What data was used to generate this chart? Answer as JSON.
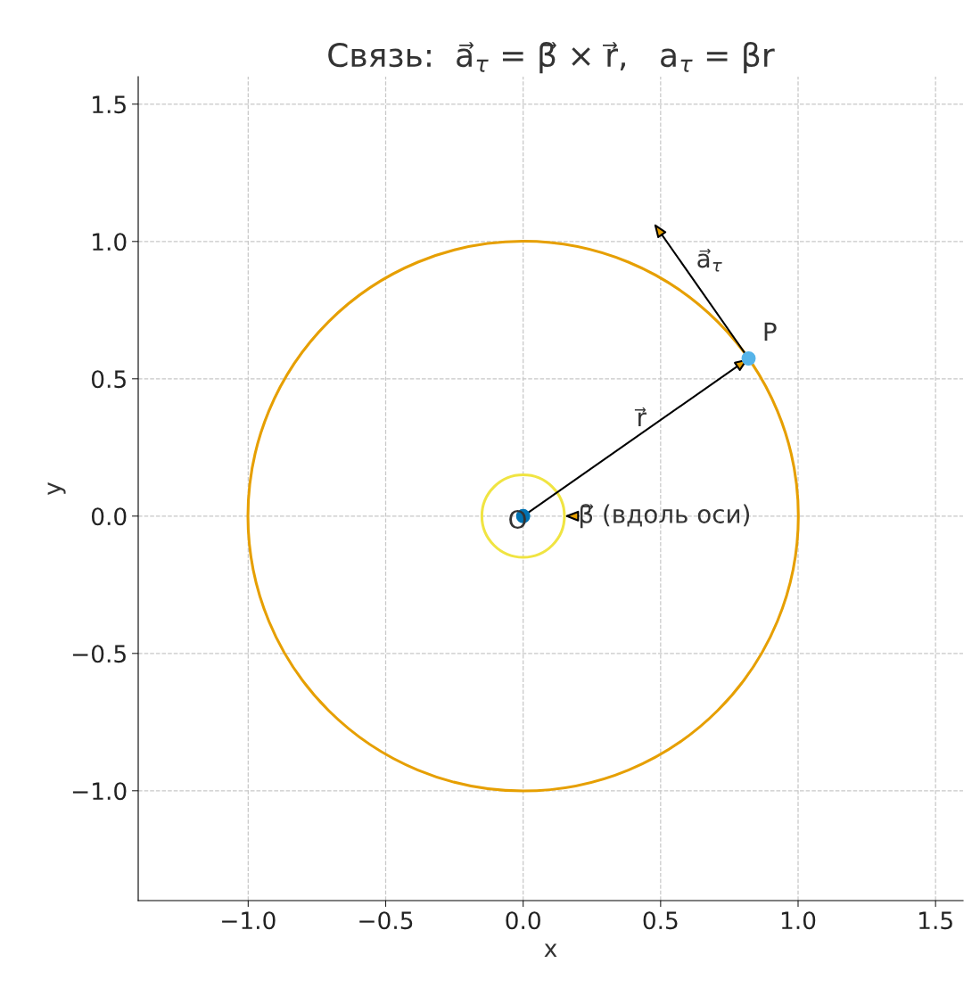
{
  "chart_data": {
    "type": "scatter",
    "title": "Связь:  a⃗$_{τ}$ = β⃗ × r⃗,   a$_{τ}$ = βr",
    "xlabel": "x",
    "ylabel": "y",
    "xlim": [
      -1.4,
      1.6
    ],
    "ylim": [
      -1.4,
      1.6
    ],
    "xticks": [
      {
        "value": -1.0,
        "label": "−1.0"
      },
      {
        "value": -0.5,
        "label": "−0.5"
      },
      {
        "value": 0.0,
        "label": "0.0"
      },
      {
        "value": 0.5,
        "label": "0.5"
      },
      {
        "value": 1.0,
        "label": "1.0"
      },
      {
        "value": 1.5,
        "label": "1.5"
      }
    ],
    "yticks": [
      {
        "value": -1.0,
        "label": "−1.0"
      },
      {
        "value": -0.5,
        "label": "−0.5"
      },
      {
        "value": 0.0,
        "label": "0.0"
      },
      {
        "value": 0.5,
        "label": "0.5"
      },
      {
        "value": 1.0,
        "label": "1.0"
      },
      {
        "value": 1.5,
        "label": "1.5"
      }
    ],
    "grid": true,
    "marker": "circle",
    "series": [
      {
        "color": "#0072b2",
        "x": [
          0
        ],
        "values": [
          0
        ]
      },
      {
        "color": "#56b4e9",
        "x": [
          0.82
        ],
        "values": [
          0.574
        ]
      }
    ],
    "annotations": [
      {
        "text": "O",
        "x": 0,
        "y": 0
      },
      {
        "text": "P",
        "x": 0.82,
        "y": 0.574
      },
      "r⃗",
      "a⃗$_{τ}$",
      "β⃗ (вдоль оси)"
    ]
  }
}
